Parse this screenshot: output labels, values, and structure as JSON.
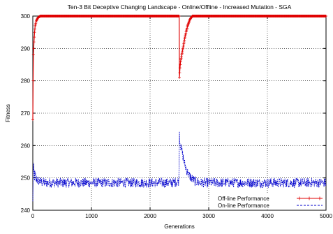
{
  "chart_data": {
    "type": "line",
    "title": "Ten-3 Bit Deceptive Changing Landscape - Online/Offline - Increased Mutation - SGA",
    "xlabel": "Generations",
    "ylabel": "Fitness",
    "xlim": [
      0,
      5000
    ],
    "ylim": [
      240,
      300
    ],
    "xticks": [
      0,
      1000,
      2000,
      3000,
      4000,
      5000
    ],
    "yticks": [
      240,
      250,
      260,
      270,
      280,
      290,
      300
    ],
    "grid": true,
    "legend_position": "bottom-right",
    "series": [
      {
        "name": "Off-line Performance",
        "color": "#e00000",
        "style": "solid-with-plus-markers",
        "points": [
          [
            0,
            268
          ],
          [
            5,
            280
          ],
          [
            10,
            288
          ],
          [
            20,
            292
          ],
          [
            30,
            295
          ],
          [
            40,
            297
          ],
          [
            60,
            298.5
          ],
          [
            80,
            299.3
          ],
          [
            100,
            299.7
          ],
          [
            130,
            300
          ],
          [
            500,
            300
          ],
          [
            1000,
            300
          ],
          [
            1500,
            300
          ],
          [
            2000,
            300
          ],
          [
            2490,
            300
          ],
          [
            2495,
            300
          ],
          [
            2500,
            281
          ],
          [
            2510,
            284
          ],
          [
            2520,
            286
          ],
          [
            2540,
            288
          ],
          [
            2560,
            290
          ],
          [
            2580,
            292
          ],
          [
            2600,
            294
          ],
          [
            2620,
            295.5
          ],
          [
            2640,
            297
          ],
          [
            2660,
            298
          ],
          [
            2680,
            299
          ],
          [
            2700,
            299.5
          ],
          [
            2720,
            300
          ],
          [
            3000,
            300
          ],
          [
            3500,
            300
          ],
          [
            4000,
            300
          ],
          [
            4500,
            300
          ],
          [
            5000,
            300
          ]
        ]
      },
      {
        "name": "On-line Performance",
        "color": "#0000cc",
        "style": "dashed",
        "points": [
          [
            0,
            242
          ],
          [
            5,
            250
          ],
          [
            10,
            253
          ],
          [
            20,
            251.5
          ],
          [
            40,
            250
          ],
          [
            100,
            249
          ],
          [
            200,
            248.5
          ],
          [
            500,
            248.5
          ],
          [
            1000,
            248.5
          ],
          [
            1500,
            248.5
          ],
          [
            2000,
            248.5
          ],
          [
            2400,
            248.5
          ],
          [
            2490,
            249
          ],
          [
            2500,
            264
          ],
          [
            2510,
            261
          ],
          [
            2540,
            258.5
          ],
          [
            2580,
            255
          ],
          [
            2620,
            252.5
          ],
          [
            2660,
            251
          ],
          [
            2700,
            250
          ],
          [
            2760,
            249
          ],
          [
            2850,
            248.5
          ],
          [
            3000,
            248.5
          ],
          [
            3500,
            248.5
          ],
          [
            4000,
            248.5
          ],
          [
            4500,
            248.5
          ],
          [
            5000,
            248.5
          ]
        ],
        "noise_amplitude": 1.5
      }
    ]
  }
}
